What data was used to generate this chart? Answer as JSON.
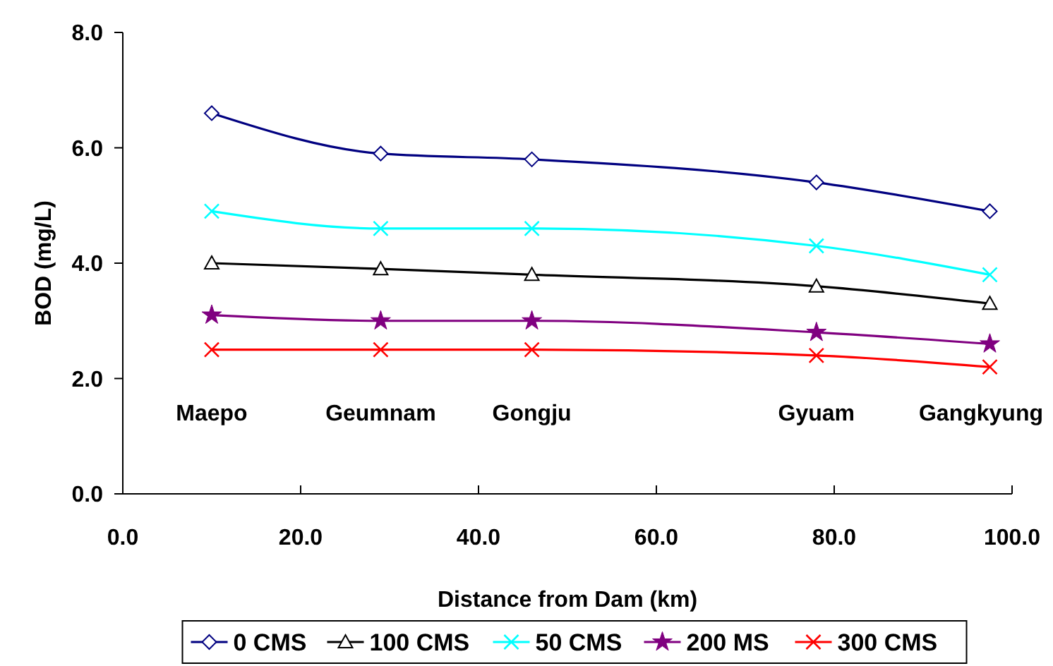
{
  "chart_data": {
    "type": "line",
    "xlabel": "Distance from Dam (km)",
    "ylabel": "BOD (mg/L)",
    "xlim": [
      0,
      100
    ],
    "xticks": [
      {
        "value": 0,
        "label": "0.0"
      },
      {
        "value": 20,
        "label": "20.0"
      },
      {
        "value": 40,
        "label": "40.0"
      },
      {
        "value": 60,
        "label": "60.0"
      },
      {
        "value": 80,
        "label": "80.0"
      },
      {
        "value": 100,
        "label": "100.0"
      }
    ],
    "ylim": [
      0,
      8
    ],
    "yticks": [
      {
        "value": 0,
        "label": "0.0"
      },
      {
        "value": 2,
        "label": "2.0"
      },
      {
        "value": 4,
        "label": "4.0"
      },
      {
        "value": 6,
        "label": "6.0"
      },
      {
        "value": 8,
        "label": "8.0"
      }
    ],
    "x": [
      10,
      29,
      46,
      78,
      97.5
    ],
    "series": [
      {
        "name": "0 CMS",
        "color": "#000080",
        "marker": "diamond",
        "values": [
          6.6,
          5.9,
          5.8,
          5.4,
          4.9
        ]
      },
      {
        "name": "100 CMS",
        "color": "#000000",
        "marker": "triangle",
        "values": [
          4.0,
          3.9,
          3.8,
          3.6,
          3.3
        ]
      },
      {
        "name": "50 CMS",
        "color": "#00ffff",
        "marker": "cross",
        "values": [
          4.9,
          4.6,
          4.6,
          4.3,
          3.8
        ]
      },
      {
        "name": "200 MS",
        "color": "#800080",
        "marker": "star",
        "values": [
          3.1,
          3.0,
          3.0,
          2.8,
          2.6
        ]
      },
      {
        "name": "300 CMS",
        "color": "#ff0000",
        "marker": "cross",
        "values": [
          2.5,
          2.5,
          2.5,
          2.4,
          2.2
        ]
      }
    ],
    "annotations": [
      "Maepo",
      "Geumnam",
      "Gongju",
      "Gyuam",
      "Gangkyung"
    ],
    "grid": false,
    "legend": "bottom",
    "line_style": "solid"
  }
}
